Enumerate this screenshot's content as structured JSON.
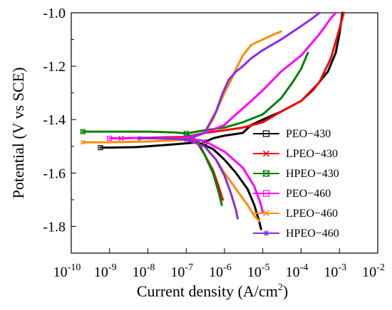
{
  "chart_data": {
    "type": "line",
    "xlabel": "Current density (A/cm",
    "xlabel_sup": "2",
    "xlabel_tail": ")",
    "ylabel": "Potential (V vs SCE)",
    "x_scale": "log",
    "xlim": [
      1e-10,
      0.01
    ],
    "ylim": [
      -1.9,
      -1.0
    ],
    "xticks": [
      {
        "base": "10",
        "exp": "-10"
      },
      {
        "base": "10",
        "exp": "-9"
      },
      {
        "base": "10",
        "exp": "-8"
      },
      {
        "base": "10",
        "exp": "-7"
      },
      {
        "base": "10",
        "exp": "-6"
      },
      {
        "base": "10",
        "exp": "-5"
      },
      {
        "base": "10",
        "exp": "-4"
      },
      {
        "base": "10",
        "exp": "-3"
      },
      {
        "base": "10",
        "exp": "-2"
      }
    ],
    "yticks": [
      "-1.8",
      "-1.6",
      "-1.4",
      "-1.2",
      "-1.0"
    ],
    "grid": false,
    "legend_position": "right",
    "series": [
      {
        "name": "PEO−430",
        "color": "#000000",
        "marker": "square",
        "cathodic": [
          [
            5.8e-10,
            -1.505
          ],
          [
            1e-09,
            -1.505
          ],
          [
            5e-09,
            -1.503
          ],
          [
            1e-08,
            -1.5
          ],
          [
            3e-08,
            -1.495
          ],
          [
            8e-08,
            -1.49
          ],
          [
            2e-07,
            -1.485
          ],
          [
            5e-07,
            -1.51
          ],
          [
            1e-06,
            -1.55
          ],
          [
            2e-06,
            -1.6
          ],
          [
            4e-06,
            -1.66
          ],
          [
            6e-06,
            -1.72
          ],
          [
            8e-06,
            -1.78
          ],
          [
            9e-06,
            -1.81
          ]
        ],
        "anodic": [
          [
            3e-07,
            -1.485
          ],
          [
            5e-07,
            -1.47
          ],
          [
            1e-06,
            -1.46
          ],
          [
            3e-06,
            -1.45
          ],
          [
            5e-06,
            -1.42
          ],
          [
            1e-05,
            -1.4
          ],
          [
            3e-05,
            -1.37
          ],
          [
            0.0001,
            -1.33
          ],
          [
            0.0002,
            -1.29
          ],
          [
            0.0005,
            -1.22
          ],
          [
            0.0008,
            -1.15
          ],
          [
            0.001,
            -1.08
          ],
          [
            0.0012,
            -1.0
          ]
        ]
      },
      {
        "name": "LPEO−430",
        "color": "#ff0000",
        "marker": "x",
        "cathodic": [
          [
            2e-09,
            -1.47
          ],
          [
            1e-08,
            -1.468
          ],
          [
            3e-08,
            -1.466
          ],
          [
            1e-07,
            -1.465
          ],
          [
            2e-07,
            -1.49
          ],
          [
            3e-07,
            -1.53
          ],
          [
            5e-07,
            -1.59
          ],
          [
            7e-07,
            -1.65
          ],
          [
            9e-07,
            -1.7
          ]
        ],
        "anodic": [
          [
            1e-07,
            -1.465
          ],
          [
            3e-07,
            -1.45
          ],
          [
            1e-06,
            -1.44
          ],
          [
            3e-06,
            -1.43
          ],
          [
            1e-05,
            -1.41
          ],
          [
            3e-05,
            -1.37
          ],
          [
            0.0001,
            -1.33
          ],
          [
            0.0003,
            -1.26
          ],
          [
            0.0006,
            -1.17
          ],
          [
            0.001,
            -1.06
          ],
          [
            0.0013,
            -1.0
          ]
        ]
      },
      {
        "name": "HPEO−430",
        "color": "#008000",
        "marker": "square-x",
        "cathodic": [
          [
            2e-10,
            -1.445
          ],
          [
            1e-09,
            -1.445
          ],
          [
            1e-08,
            -1.445
          ],
          [
            5e-08,
            -1.448
          ],
          [
            1e-07,
            -1.452
          ],
          [
            2e-07,
            -1.48
          ],
          [
            3e-07,
            -1.53
          ],
          [
            5e-07,
            -1.6
          ],
          [
            7e-07,
            -1.67
          ],
          [
            8.5e-07,
            -1.72
          ]
        ],
        "anodic": [
          [
            1e-07,
            -1.452
          ],
          [
            3e-07,
            -1.44
          ],
          [
            1e-06,
            -1.43
          ],
          [
            3e-06,
            -1.41
          ],
          [
            1e-05,
            -1.38
          ],
          [
            3e-05,
            -1.32
          ],
          [
            6e-05,
            -1.26
          ],
          [
            0.0001,
            -1.21
          ],
          [
            0.00015,
            -1.15
          ]
        ]
      },
      {
        "name": "PEO−460",
        "color": "#ff00ff",
        "marker": "square",
        "cathodic": [
          [
            1e-09,
            -1.47
          ],
          [
            1e-08,
            -1.468
          ],
          [
            1e-07,
            -1.47
          ],
          [
            3e-07,
            -1.48
          ],
          [
            1e-06,
            -1.52
          ],
          [
            3e-06,
            -1.58
          ],
          [
            6e-06,
            -1.65
          ],
          [
            9e-06,
            -1.72
          ],
          [
            1e-05,
            -1.75
          ]
        ],
        "anodic": [
          [
            1e-07,
            -1.47
          ],
          [
            3e-07,
            -1.45
          ],
          [
            1e-06,
            -1.42
          ],
          [
            2e-06,
            -1.38
          ],
          [
            5e-06,
            -1.33
          ],
          [
            1e-05,
            -1.29
          ],
          [
            3e-05,
            -1.22
          ],
          [
            0.0001,
            -1.16
          ],
          [
            0.0003,
            -1.08
          ],
          [
            0.0006,
            -1.02
          ],
          [
            0.0008,
            -1.0
          ]
        ]
      },
      {
        "name": "LPEO−460",
        "color": "#ff8c00",
        "marker": "x",
        "cathodic": [
          [
            2e-10,
            -1.485
          ],
          [
            1e-09,
            -1.485
          ],
          [
            1e-08,
            -1.482
          ],
          [
            5e-08,
            -1.478
          ],
          [
            1e-07,
            -1.475
          ],
          [
            3e-07,
            -1.5
          ],
          [
            6e-07,
            -1.55
          ],
          [
            1e-06,
            -1.6
          ],
          [
            2e-06,
            -1.66
          ],
          [
            4e-06,
            -1.72
          ],
          [
            6e-06,
            -1.76
          ],
          [
            8e-06,
            -1.78
          ]
        ],
        "anodic": [
          [
            1e-07,
            -1.475
          ],
          [
            3e-07,
            -1.45
          ],
          [
            5e-07,
            -1.4
          ],
          [
            7e-07,
            -1.35
          ],
          [
            1e-06,
            -1.3
          ],
          [
            1.5e-06,
            -1.25
          ],
          [
            2e-06,
            -1.21
          ],
          [
            3e-06,
            -1.16
          ],
          [
            5e-06,
            -1.12
          ],
          [
            1e-05,
            -1.1
          ],
          [
            2e-05,
            -1.08
          ],
          [
            3e-05,
            -1.07
          ]
        ]
      },
      {
        "name": "HPEO−460",
        "color": "#8a2be2",
        "marker": "star",
        "cathodic": [
          [
            6e-09,
            -1.47
          ],
          [
            1e-08,
            -1.47
          ],
          [
            5e-08,
            -1.472
          ],
          [
            1e-07,
            -1.475
          ],
          [
            3e-07,
            -1.5
          ],
          [
            6e-07,
            -1.55
          ],
          [
            1e-06,
            -1.61
          ],
          [
            1.5e-06,
            -1.68
          ],
          [
            2e-06,
            -1.74
          ],
          [
            2.2e-06,
            -1.77
          ]
        ],
        "anodic": [
          [
            1e-07,
            -1.475
          ],
          [
            3e-07,
            -1.45
          ],
          [
            6e-07,
            -1.37
          ],
          [
            9e-07,
            -1.3
          ],
          [
            1.3e-06,
            -1.25
          ],
          [
            2e-06,
            -1.22
          ],
          [
            3e-06,
            -1.2
          ],
          [
            5e-06,
            -1.17
          ],
          [
            1e-05,
            -1.14
          ],
          [
            3e-05,
            -1.1
          ],
          [
            0.0001,
            -1.05
          ],
          [
            0.0002,
            -1.02
          ],
          [
            0.0003,
            -1.0
          ]
        ]
      }
    ]
  }
}
